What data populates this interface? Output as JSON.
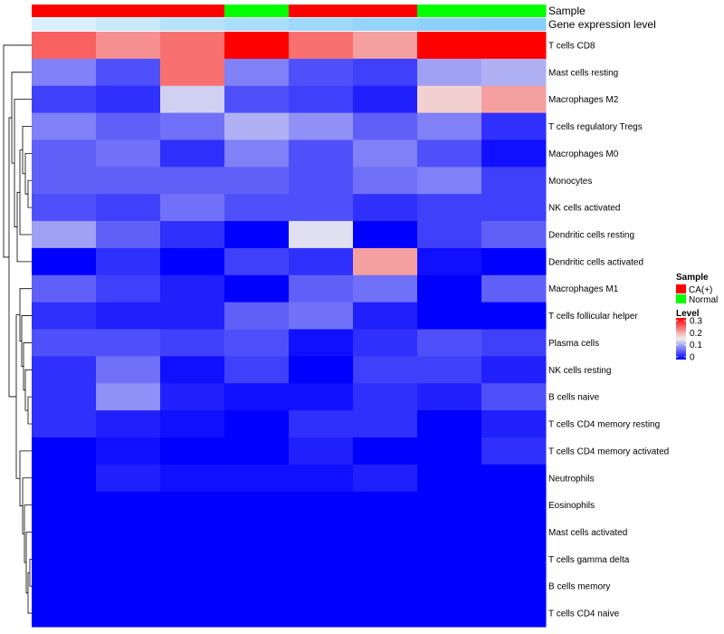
{
  "chart_data": {
    "type": "heatmap",
    "title": "",
    "annotation_tracks": [
      {
        "label": "Sample",
        "key": "sample"
      },
      {
        "label": "Gene expression level",
        "key": "gene_expression_level"
      }
    ],
    "columns": [
      {
        "sample": "CA(+)",
        "gene_expression_level": 0.3
      },
      {
        "sample": "CA(+)",
        "gene_expression_level": 0.45
      },
      {
        "sample": "CA(+)",
        "gene_expression_level": 0.6
      },
      {
        "sample": "Normal",
        "gene_expression_level": 0.7
      },
      {
        "sample": "CA(+)",
        "gene_expression_level": 0.8
      },
      {
        "sample": "CA(+)",
        "gene_expression_level": 0.88
      },
      {
        "sample": "Normal",
        "gene_expression_level": 0.95
      },
      {
        "sample": "Normal",
        "gene_expression_level": 1.0
      }
    ],
    "rows": [
      "T cells CD8",
      "Mast cells resting",
      "Macrophages M2",
      "T cells regulatory  Tregs",
      "Macrophages M0",
      "Monocytes",
      "NK cells activated",
      "Dendritic cells resting",
      "Dendritic cells activated",
      "Macrophages M1",
      "T cells follicular helper",
      "Plasma cells",
      "NK cells resting",
      "B cells naive",
      "T cells CD4 memory resting",
      "T cells CD4 memory activated",
      "Neutrophils",
      "Eosinophils",
      "Mast cells activated",
      "T cells gamma delta",
      "B cells memory",
      "T cells CD4 naive"
    ],
    "values": [
      [
        0.24,
        0.21,
        0.23,
        0.3,
        0.23,
        0.2,
        0.3,
        0.3
      ],
      [
        0.08,
        0.05,
        0.23,
        0.08,
        0.05,
        0.04,
        0.1,
        0.11
      ],
      [
        0.04,
        0.03,
        0.13,
        0.05,
        0.04,
        0.02,
        0.17,
        0.2
      ],
      [
        0.08,
        0.06,
        0.07,
        0.11,
        0.09,
        0.06,
        0.08,
        0.03
      ],
      [
        0.06,
        0.07,
        0.03,
        0.08,
        0.05,
        0.08,
        0.05,
        0.01
      ],
      [
        0.06,
        0.06,
        0.06,
        0.06,
        0.05,
        0.07,
        0.08,
        0.04
      ],
      [
        0.05,
        0.04,
        0.07,
        0.05,
        0.05,
        0.03,
        0.04,
        0.04
      ],
      [
        0.1,
        0.06,
        0.03,
        0.0,
        0.14,
        0.0,
        0.04,
        0.06
      ],
      [
        0.0,
        0.03,
        0.0,
        0.04,
        0.03,
        0.2,
        0.01,
        0.0
      ],
      [
        0.06,
        0.04,
        0.02,
        0.0,
        0.06,
        0.07,
        0.0,
        0.06
      ],
      [
        0.03,
        0.02,
        0.02,
        0.06,
        0.07,
        0.02,
        0.0,
        0.0
      ],
      [
        0.05,
        0.05,
        0.04,
        0.05,
        0.01,
        0.03,
        0.05,
        0.04
      ],
      [
        0.03,
        0.07,
        0.01,
        0.04,
        0.0,
        0.04,
        0.04,
        0.02
      ],
      [
        0.03,
        0.09,
        0.02,
        0.01,
        0.01,
        0.03,
        0.02,
        0.05
      ],
      [
        0.03,
        0.02,
        0.01,
        0.0,
        0.03,
        0.03,
        0.0,
        0.02
      ],
      [
        0.0,
        0.01,
        0.0,
        0.0,
        0.02,
        0.0,
        0.0,
        0.03
      ],
      [
        0.0,
        0.02,
        0.01,
        0.01,
        0.01,
        0.02,
        0.0,
        0.0
      ],
      [
        0.0,
        0.0,
        0.0,
        0.0,
        0.0,
        0.0,
        0.0,
        0.0
      ],
      [
        0.0,
        0.0,
        0.0,
        0.0,
        0.0,
        0.0,
        0.0,
        0.0
      ],
      [
        0.0,
        0.0,
        0.0,
        0.0,
        0.0,
        0.0,
        0.0,
        0.0
      ],
      [
        0.0,
        0.0,
        0.0,
        0.0,
        0.0,
        0.0,
        0.0,
        0.0
      ],
      [
        0.0,
        0.0,
        0.0,
        0.0,
        0.0,
        0.0,
        0.0,
        0.0
      ]
    ],
    "color_scale": {
      "min": 0,
      "mid": 0.15,
      "max": 0.3,
      "low": "#0000ff",
      "midcolor": "#f0f0f0",
      "high": "#ff0000"
    },
    "legend": {
      "sample_title": "Sample",
      "sample_entries": [
        {
          "label": "CA(+)",
          "color": "#ff0000"
        },
        {
          "label": "Normal",
          "color": "#00ff00"
        }
      ],
      "level_title": "Level",
      "level_ticks": [
        "0.3",
        "0.2",
        "0.1",
        "0"
      ],
      "placement": "right"
    },
    "gene_expression_colors": {
      "low": "#ffffff",
      "high": "#87cefa"
    },
    "dendrogram": "rows"
  }
}
